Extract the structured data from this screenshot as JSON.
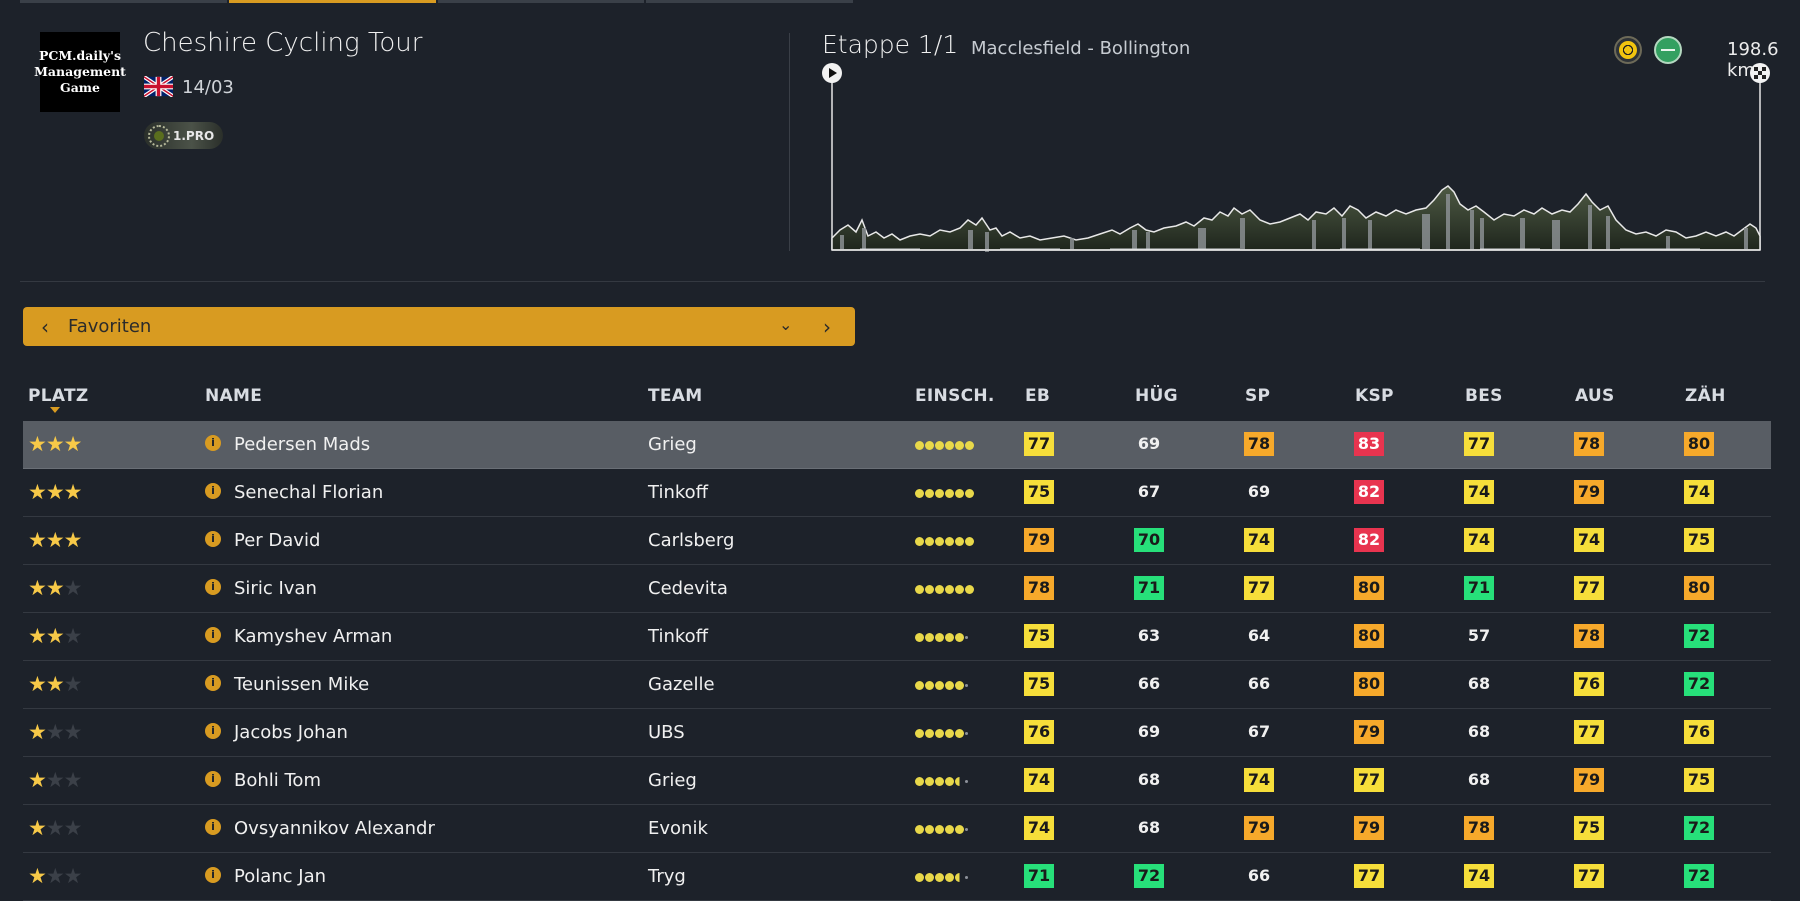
{
  "race": {
    "logo_text": "PCM.daily's Management Game",
    "title": "Cheshire Cycling Tour",
    "date": "14/03",
    "class": "1.PRO"
  },
  "stage": {
    "name": "Etappe 1/1",
    "route": "Macclesfield - Bollington",
    "distance": "198.6 km"
  },
  "selector": {
    "value": "Favoriten"
  },
  "table": {
    "headers": [
      "PLATZ",
      "NAME",
      "TEAM",
      "EINSCH.",
      "EB",
      "HÜG",
      "SP",
      "KSP",
      "BES",
      "AUS",
      "ZÄH"
    ],
    "rows": [
      {
        "stars": 3,
        "name": "Pedersen Mads",
        "team": "Grieg",
        "form": [
          "f",
          "f",
          "f",
          "f",
          "f",
          "f"
        ],
        "stats": [
          [
            "77",
            "y"
          ],
          [
            "69",
            "none"
          ],
          [
            "78",
            "o"
          ],
          [
            "83",
            "r"
          ],
          [
            "77",
            "y"
          ],
          [
            "78",
            "o"
          ],
          [
            "80",
            "o"
          ]
        ],
        "selected": true
      },
      {
        "stars": 3,
        "name": "Senechal Florian",
        "team": "Tinkoff",
        "form": [
          "f",
          "f",
          "f",
          "f",
          "f",
          "f"
        ],
        "stats": [
          [
            "75",
            "y"
          ],
          [
            "67",
            "none"
          ],
          [
            "69",
            "none"
          ],
          [
            "82",
            "r"
          ],
          [
            "74",
            "y"
          ],
          [
            "79",
            "o"
          ],
          [
            "74",
            "y"
          ]
        ]
      },
      {
        "stars": 3,
        "name": "Per David",
        "team": "Carlsberg",
        "form": [
          "f",
          "f",
          "f",
          "f",
          "f",
          "f"
        ],
        "stats": [
          [
            "79",
            "o"
          ],
          [
            "70",
            "g"
          ],
          [
            "74",
            "y"
          ],
          [
            "82",
            "r"
          ],
          [
            "74",
            "y"
          ],
          [
            "74",
            "y"
          ],
          [
            "75",
            "y"
          ]
        ]
      },
      {
        "stars": 2,
        "name": "Siric Ivan",
        "team": "Cedevita",
        "form": [
          "f",
          "f",
          "f",
          "f",
          "f",
          "f"
        ],
        "stats": [
          [
            "78",
            "o"
          ],
          [
            "71",
            "g"
          ],
          [
            "77",
            "y"
          ],
          [
            "80",
            "o"
          ],
          [
            "71",
            "g"
          ],
          [
            "77",
            "y"
          ],
          [
            "80",
            "o"
          ]
        ]
      },
      {
        "stars": 2,
        "name": "Kamyshev Arman",
        "team": "Tinkoff",
        "form": [
          "f",
          "f",
          "f",
          "f",
          "f",
          "x"
        ],
        "stats": [
          [
            "75",
            "y"
          ],
          [
            "63",
            "none"
          ],
          [
            "64",
            "none"
          ],
          [
            "80",
            "o"
          ],
          [
            "57",
            "none"
          ],
          [
            "78",
            "o"
          ],
          [
            "72",
            "g"
          ]
        ]
      },
      {
        "stars": 2,
        "name": "Teunissen Mike",
        "team": "Gazelle",
        "form": [
          "f",
          "f",
          "f",
          "f",
          "f",
          "x"
        ],
        "stats": [
          [
            "75",
            "y"
          ],
          [
            "66",
            "none"
          ],
          [
            "66",
            "none"
          ],
          [
            "80",
            "o"
          ],
          [
            "68",
            "none"
          ],
          [
            "76",
            "y"
          ],
          [
            "72",
            "g"
          ]
        ]
      },
      {
        "stars": 1,
        "name": "Jacobs Johan",
        "team": "UBS",
        "form": [
          "f",
          "f",
          "f",
          "f",
          "f",
          "x"
        ],
        "stats": [
          [
            "76",
            "y"
          ],
          [
            "69",
            "none"
          ],
          [
            "67",
            "none"
          ],
          [
            "79",
            "o"
          ],
          [
            "68",
            "none"
          ],
          [
            "77",
            "y"
          ],
          [
            "76",
            "y"
          ]
        ]
      },
      {
        "stars": 1,
        "name": "Bohli Tom",
        "team": "Grieg",
        "form": [
          "f",
          "f",
          "f",
          "f",
          "h",
          "x"
        ],
        "stats": [
          [
            "74",
            "y"
          ],
          [
            "68",
            "none"
          ],
          [
            "74",
            "y"
          ],
          [
            "77",
            "y"
          ],
          [
            "68",
            "none"
          ],
          [
            "79",
            "o"
          ],
          [
            "75",
            "y"
          ]
        ]
      },
      {
        "stars": 1,
        "name": "Ovsyannikov Alexandr",
        "team": "Evonik",
        "form": [
          "f",
          "f",
          "f",
          "f",
          "f",
          "x"
        ],
        "stats": [
          [
            "74",
            "y"
          ],
          [
            "68",
            "none"
          ],
          [
            "79",
            "o"
          ],
          [
            "79",
            "o"
          ],
          [
            "78",
            "o"
          ],
          [
            "75",
            "y"
          ],
          [
            "72",
            "g"
          ]
        ]
      },
      {
        "stars": 1,
        "name": "Polanc Jan",
        "team": "Tryg",
        "form": [
          "f",
          "f",
          "f",
          "f",
          "h",
          "x"
        ],
        "stats": [
          [
            "71",
            "g"
          ],
          [
            "72",
            "g"
          ],
          [
            "66",
            "none"
          ],
          [
            "77",
            "y"
          ],
          [
            "74",
            "y"
          ],
          [
            "77",
            "y"
          ],
          [
            "72",
            "g"
          ]
        ]
      }
    ]
  },
  "icons": {
    "start": "play-icon",
    "finish": "checkered-flag-icon",
    "jersey": "jersey-icon",
    "terrain": "flat-terrain-icon",
    "info": "info-icon",
    "prev": "chevron-left-icon",
    "next": "chevron-right-icon",
    "dropdown": "chevron-down-icon"
  },
  "colors": {
    "accent": "#d89b21",
    "stat_yellow": "#f6de3a",
    "stat_orange": "#f6a92b",
    "stat_red": "#e8344f",
    "stat_green": "#27e07a"
  }
}
